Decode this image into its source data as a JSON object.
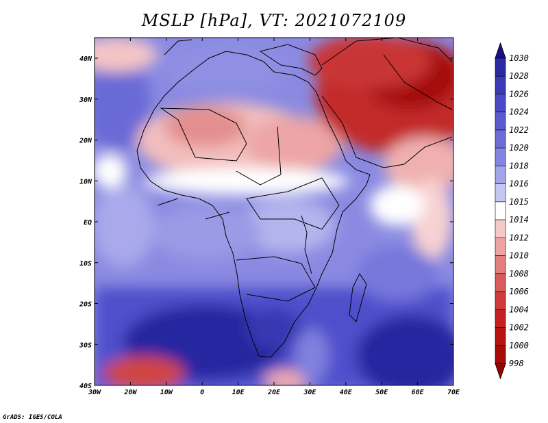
{
  "title": "MSLP [hPa], VT: 2021072109",
  "credit": "GrADS: IGES/COLA",
  "lon_ticks": [
    "30W",
    "20W",
    "10W",
    "0",
    "10E",
    "20E",
    "30E",
    "40E",
    "50E",
    "60E",
    "70E"
  ],
  "lat_ticks": [
    "40N",
    "30N",
    "20N",
    "10N",
    "EQ",
    "10S",
    "20S",
    "30S",
    "40S"
  ],
  "colorbar": {
    "levels": [
      "1030",
      "1028",
      "1026",
      "1024",
      "1022",
      "1020",
      "1018",
      "1016",
      "1015",
      "1014",
      "1012",
      "1010",
      "1008",
      "1006",
      "1004",
      "1002",
      "1000",
      "998"
    ],
    "colors": [
      "#1a0f8a",
      "#2a2aa3",
      "#3a3ab8",
      "#4a4ac6",
      "#5b5bd0",
      "#6c6cd8",
      "#8383e0",
      "#a3a3ea",
      "#c6c6f3",
      "#ffffff",
      "#f6c9c9",
      "#eea3a3",
      "#e47f7f",
      "#da5b5b",
      "#d03a3a",
      "#c42222",
      "#b81212",
      "#a80a0a",
      "#980404"
    ]
  }
}
